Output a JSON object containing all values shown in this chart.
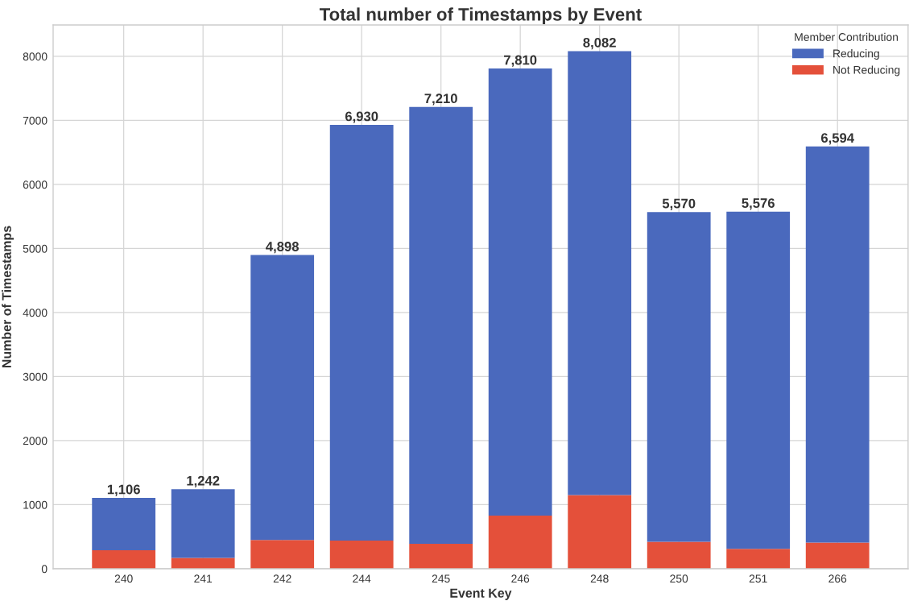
{
  "chart_data": {
    "type": "bar",
    "title": "Total number of Timestamps by Event",
    "xlabel": "Event Key",
    "ylabel": "Number of Timestamps",
    "legend_title": "Member Contribution",
    "categories": [
      "240",
      "241",
      "242",
      "244",
      "245",
      "246",
      "248",
      "250",
      "251",
      "266"
    ],
    "stacked": true,
    "series": [
      {
        "name": "Not Reducing",
        "color": "#e4503a",
        "values": [
          290,
          170,
          450,
          440,
          390,
          830,
          1150,
          420,
          310,
          410
        ]
      },
      {
        "name": "Reducing",
        "color": "#4a69bd",
        "values": [
          816,
          1072,
          4448,
          6490,
          6820,
          6980,
          6932,
          5150,
          5266,
          6184
        ]
      }
    ],
    "totals": [
      "1,106",
      "1,242",
      "4,898",
      "6,930",
      "7,210",
      "7,810",
      "8,082",
      "5,570",
      "5,576",
      "6,594"
    ],
    "ylim": [
      0,
      8490
    ],
    "yticks": [
      0,
      1000,
      2000,
      3000,
      4000,
      5000,
      6000,
      7000,
      8000
    ],
    "grid": true,
    "legend": "top right"
  }
}
